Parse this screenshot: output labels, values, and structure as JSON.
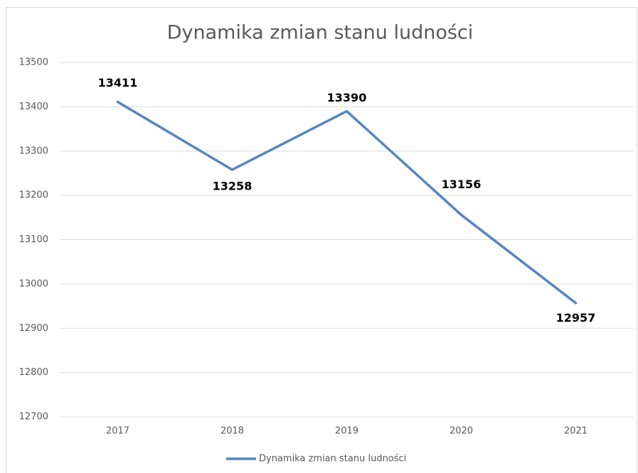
{
  "chart_data": {
    "type": "line",
    "title": "Dynamika zmian stanu ludności",
    "categories": [
      "2017",
      "2018",
      "2019",
      "2020",
      "2021"
    ],
    "series": [
      {
        "name": "Dynamika zmian stanu ludności",
        "color": "#5585c4",
        "values": [
          13411,
          13258,
          13390,
          13156,
          12957
        ]
      }
    ],
    "ylim": [
      12700,
      13500
    ],
    "yticks": [
      12700,
      12800,
      12900,
      13000,
      13100,
      13200,
      13300,
      13400,
      13500
    ],
    "grid": true,
    "legend": "bottom"
  }
}
